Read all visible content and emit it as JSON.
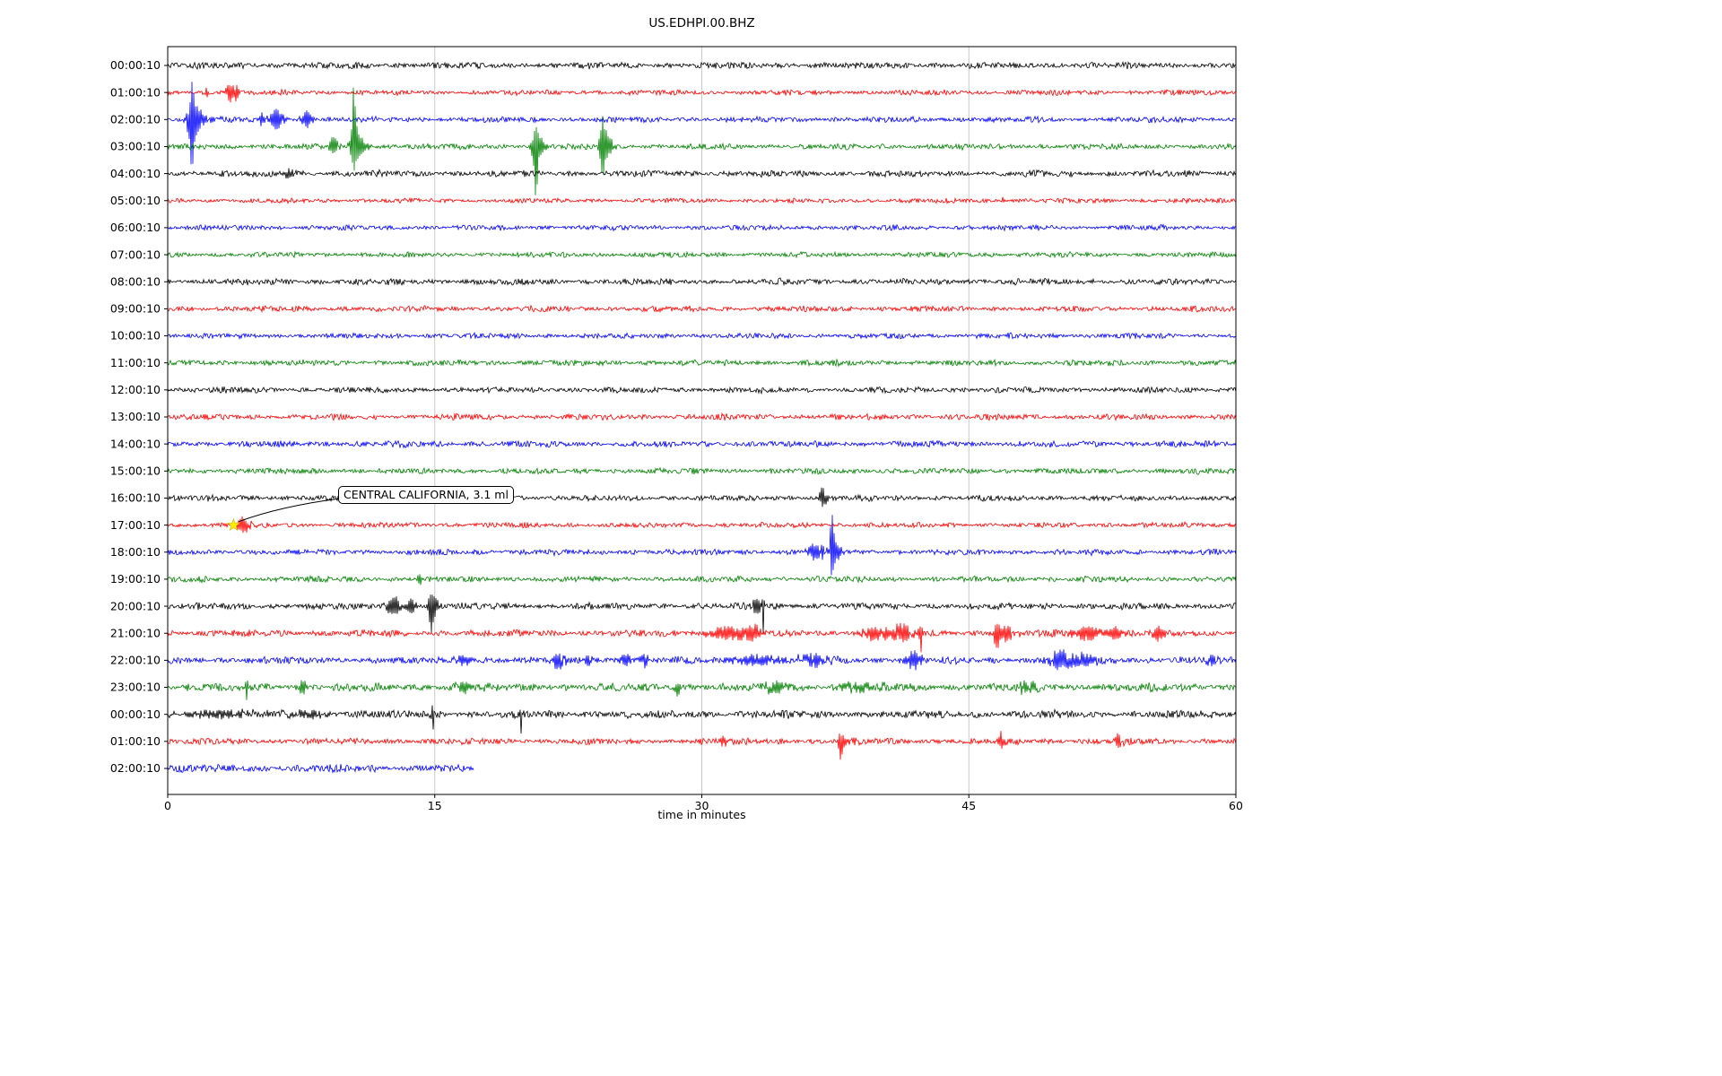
{
  "chart_data": {
    "type": "line",
    "subtype": "seismogram-helicorder-dayplot",
    "title": "US.EDHPI.00.BHZ",
    "xlabel": "time in minutes",
    "xlim": [
      0,
      60
    ],
    "x_ticks": [
      0,
      15,
      30,
      45,
      60
    ],
    "x_tick_labels": [
      "0",
      "15",
      "30",
      "45",
      "60"
    ],
    "grid_minutes": [
      15,
      30,
      45
    ],
    "grid_color": "#c9c9c9",
    "trace_color_cycle": [
      "#000000",
      "#ff0000",
      "#0000ff",
      "#008000"
    ],
    "annotation": {
      "text": "CENTRAL CALIFORNIA, 3.1 ml",
      "row_index": 17,
      "t_min": 3.7,
      "marker": "yellow-star",
      "marker_color": "#ffee00"
    },
    "rows": [
      {
        "label": "00:00:10",
        "color": "#000000",
        "noise": 2.4,
        "events": []
      },
      {
        "label": "01:00:10",
        "color": "#ff0000",
        "noise": 2.0,
        "events": [
          {
            "t": 2.2,
            "a": 7,
            "w": 0.07
          },
          {
            "t": 3.5,
            "a": 10,
            "w": 0.3
          },
          {
            "t": 3.9,
            "a": 8,
            "w": 0.12
          },
          {
            "t": 10.6,
            "a": 5,
            "w": 0.05
          }
        ]
      },
      {
        "label": "02:00:10",
        "color": "#0000ff",
        "noise": 2.2,
        "events": [
          {
            "t": 1.35,
            "a": 44,
            "w": 0.2,
            "up": 0.9,
            "dn": 1.15
          },
          {
            "t": 1.7,
            "a": 12,
            "w": 0.5
          },
          {
            "t": 5.3,
            "a": 5,
            "w": 0.2
          },
          {
            "t": 6.1,
            "a": 11,
            "w": 0.45
          },
          {
            "t": 7.8,
            "a": 9,
            "w": 0.3
          }
        ]
      },
      {
        "label": "03:00:10",
        "color": "#008000",
        "noise": 2.2,
        "events": [
          {
            "t": 9.3,
            "a": 9,
            "w": 0.3
          },
          {
            "t": 10.45,
            "a": 42,
            "w": 0.16,
            "up": 1.55,
            "dn": 0.45
          },
          {
            "t": 10.7,
            "a": 12,
            "w": 0.5
          },
          {
            "t": 20.65,
            "a": 40,
            "w": 0.16,
            "up": 0.45,
            "dn": 1.3
          },
          {
            "t": 20.9,
            "a": 9,
            "w": 0.4
          },
          {
            "t": 24.45,
            "a": 30,
            "w": 0.18,
            "up": 1.1,
            "dn": 0.9
          },
          {
            "t": 24.7,
            "a": 9,
            "w": 0.4
          }
        ]
      },
      {
        "label": "04:00:10",
        "color": "#000000",
        "noise": 2.4,
        "events": [
          {
            "t": 6.8,
            "a": 4,
            "w": 0.4
          }
        ]
      },
      {
        "label": "05:00:10",
        "color": "#ff0000",
        "noise": 1.8,
        "events": [
          {
            "t": 46.9,
            "a": 5,
            "w": 0.07
          }
        ]
      },
      {
        "label": "06:00:10",
        "color": "#0000ff",
        "noise": 2.0,
        "events": []
      },
      {
        "label": "07:00:10",
        "color": "#008000",
        "noise": 2.0,
        "events": []
      },
      {
        "label": "08:00:10",
        "color": "#000000",
        "noise": 2.4,
        "events": []
      },
      {
        "label": "09:00:10",
        "color": "#ff0000",
        "noise": 2.2,
        "events": []
      },
      {
        "label": "10:00:10",
        "color": "#0000ff",
        "noise": 2.0,
        "events": []
      },
      {
        "label": "11:00:10",
        "color": "#008000",
        "noise": 2.2,
        "events": []
      },
      {
        "label": "12:00:10",
        "color": "#000000",
        "noise": 2.2,
        "events": []
      },
      {
        "label": "13:00:10",
        "color": "#ff0000",
        "noise": 2.2,
        "events": []
      },
      {
        "label": "14:00:10",
        "color": "#0000ff",
        "noise": 2.4,
        "events": []
      },
      {
        "label": "15:00:10",
        "color": "#008000",
        "noise": 2.2,
        "events": []
      },
      {
        "label": "16:00:10",
        "color": "#000000",
        "noise": 2.2,
        "events": [
          {
            "t": 36.8,
            "a": 11,
            "w": 0.28
          }
        ]
      },
      {
        "label": "17:00:10",
        "color": "#ff0000",
        "noise": 2.0,
        "events": [
          {
            "t": 4.2,
            "a": 9,
            "w": 0.4
          }
        ]
      },
      {
        "label": "18:00:10",
        "color": "#0000ff",
        "noise": 2.2,
        "events": [
          {
            "t": 36.4,
            "a": 9,
            "w": 0.5
          },
          {
            "t": 37.3,
            "a": 40,
            "w": 0.11,
            "up": 1.05,
            "dn": 0.55
          },
          {
            "t": 37.55,
            "a": 11,
            "w": 0.35
          }
        ]
      },
      {
        "label": "19:00:10",
        "color": "#008000",
        "noise": 2.2,
        "events": [
          {
            "t": 14.2,
            "a": 4,
            "w": 0.3
          }
        ]
      },
      {
        "label": "20:00:10",
        "color": "#000000",
        "noise": 2.6,
        "events": [
          {
            "t": 12.7,
            "a": 11,
            "w": 0.4
          },
          {
            "t": 13.7,
            "a": 9,
            "w": 0.3
          },
          {
            "t": 14.8,
            "a": 16,
            "w": 0.16,
            "up": 0.8,
            "dn": 1.5
          },
          {
            "t": 15.0,
            "a": 8,
            "w": 0.3
          },
          {
            "t": 33.1,
            "a": 8,
            "w": 0.35
          },
          {
            "t": 33.45,
            "a": 22,
            "w": 0.06,
            "up": 0.5,
            "dn": 1.15
          }
        ]
      },
      {
        "label": "21:00:10",
        "color": "#ff0000",
        "noise": 2.6,
        "events": [
          {
            "t": 31.3,
            "a": 6,
            "w": 1.2
          },
          {
            "t": 32.8,
            "a": 7,
            "w": 0.8
          },
          {
            "t": 39.6,
            "a": 7,
            "w": 0.7
          },
          {
            "t": 41.2,
            "a": 8,
            "w": 0.9
          },
          {
            "t": 42.3,
            "a": 16,
            "w": 0.09,
            "up": 0.6,
            "dn": 1.2
          },
          {
            "t": 46.6,
            "a": 12,
            "w": 0.25,
            "up": 0.7,
            "dn": 1.2
          },
          {
            "t": 47.1,
            "a": 7,
            "w": 0.5
          },
          {
            "t": 51.6,
            "a": 7,
            "w": 0.9
          },
          {
            "t": 53.2,
            "a": 6,
            "w": 0.6
          },
          {
            "t": 55.6,
            "a": 9,
            "w": 0.3
          }
        ]
      },
      {
        "label": "22:00:10",
        "color": "#0000ff",
        "noise": 2.8,
        "events": [
          {
            "t": 16.6,
            "a": 5,
            "w": 0.7
          },
          {
            "t": 21.9,
            "a": 7,
            "w": 0.5
          },
          {
            "t": 23.6,
            "a": 6,
            "w": 0.3
          },
          {
            "t": 25.7,
            "a": 7,
            "w": 0.35
          },
          {
            "t": 26.8,
            "a": 6,
            "w": 0.25
          },
          {
            "t": 33.0,
            "a": 5,
            "w": 1.6
          },
          {
            "t": 36.2,
            "a": 5,
            "w": 1.2
          },
          {
            "t": 41.9,
            "a": 9,
            "w": 0.6
          },
          {
            "t": 50.2,
            "a": 10,
            "w": 0.8
          },
          {
            "t": 51.6,
            "a": 7,
            "w": 0.6
          },
          {
            "t": 58.6,
            "a": 7,
            "w": 0.3
          }
        ]
      },
      {
        "label": "23:00:10",
        "color": "#008000",
        "noise": 3.2,
        "events": [
          {
            "t": 4.45,
            "a": 12,
            "w": 0.09
          },
          {
            "t": 7.6,
            "a": 7,
            "w": 0.25
          },
          {
            "t": 16.6,
            "a": 5,
            "w": 0.4
          },
          {
            "t": 28.6,
            "a": 8,
            "w": 0.2,
            "up": 0.7,
            "dn": 1.2
          },
          {
            "t": 34.0,
            "a": 5,
            "w": 1.0
          },
          {
            "t": 39.0,
            "a": 5,
            "w": 1.2
          },
          {
            "t": 48.2,
            "a": 5,
            "w": 0.5
          }
        ]
      },
      {
        "label": "00:00:10",
        "color": "#000000",
        "noise": 3.0,
        "events": [
          {
            "t": 3.0,
            "a": 3,
            "w": 2.5
          },
          {
            "t": 8.0,
            "a": 3,
            "w": 1.5
          },
          {
            "t": 14.85,
            "a": 19,
            "w": 0.09,
            "up": 0.4,
            "dn": 1.2
          },
          {
            "t": 19.85,
            "a": 16,
            "w": 0.08,
            "up": 0.4,
            "dn": 1.2
          }
        ]
      },
      {
        "label": "01:00:10",
        "color": "#ff0000",
        "noise": 2.4,
        "events": [
          {
            "t": 31.2,
            "a": 4,
            "w": 0.4
          },
          {
            "t": 37.8,
            "a": 15,
            "w": 0.11,
            "up": 0.5,
            "dn": 1.1
          },
          {
            "t": 38.0,
            "a": 6,
            "w": 0.4
          },
          {
            "t": 46.8,
            "a": 9,
            "w": 0.22
          },
          {
            "t": 53.4,
            "a": 7,
            "w": 0.25
          }
        ]
      },
      {
        "label": "02:00:10",
        "color": "#0000ff",
        "noise": 3.0,
        "extent": 17.2,
        "events": []
      }
    ]
  }
}
